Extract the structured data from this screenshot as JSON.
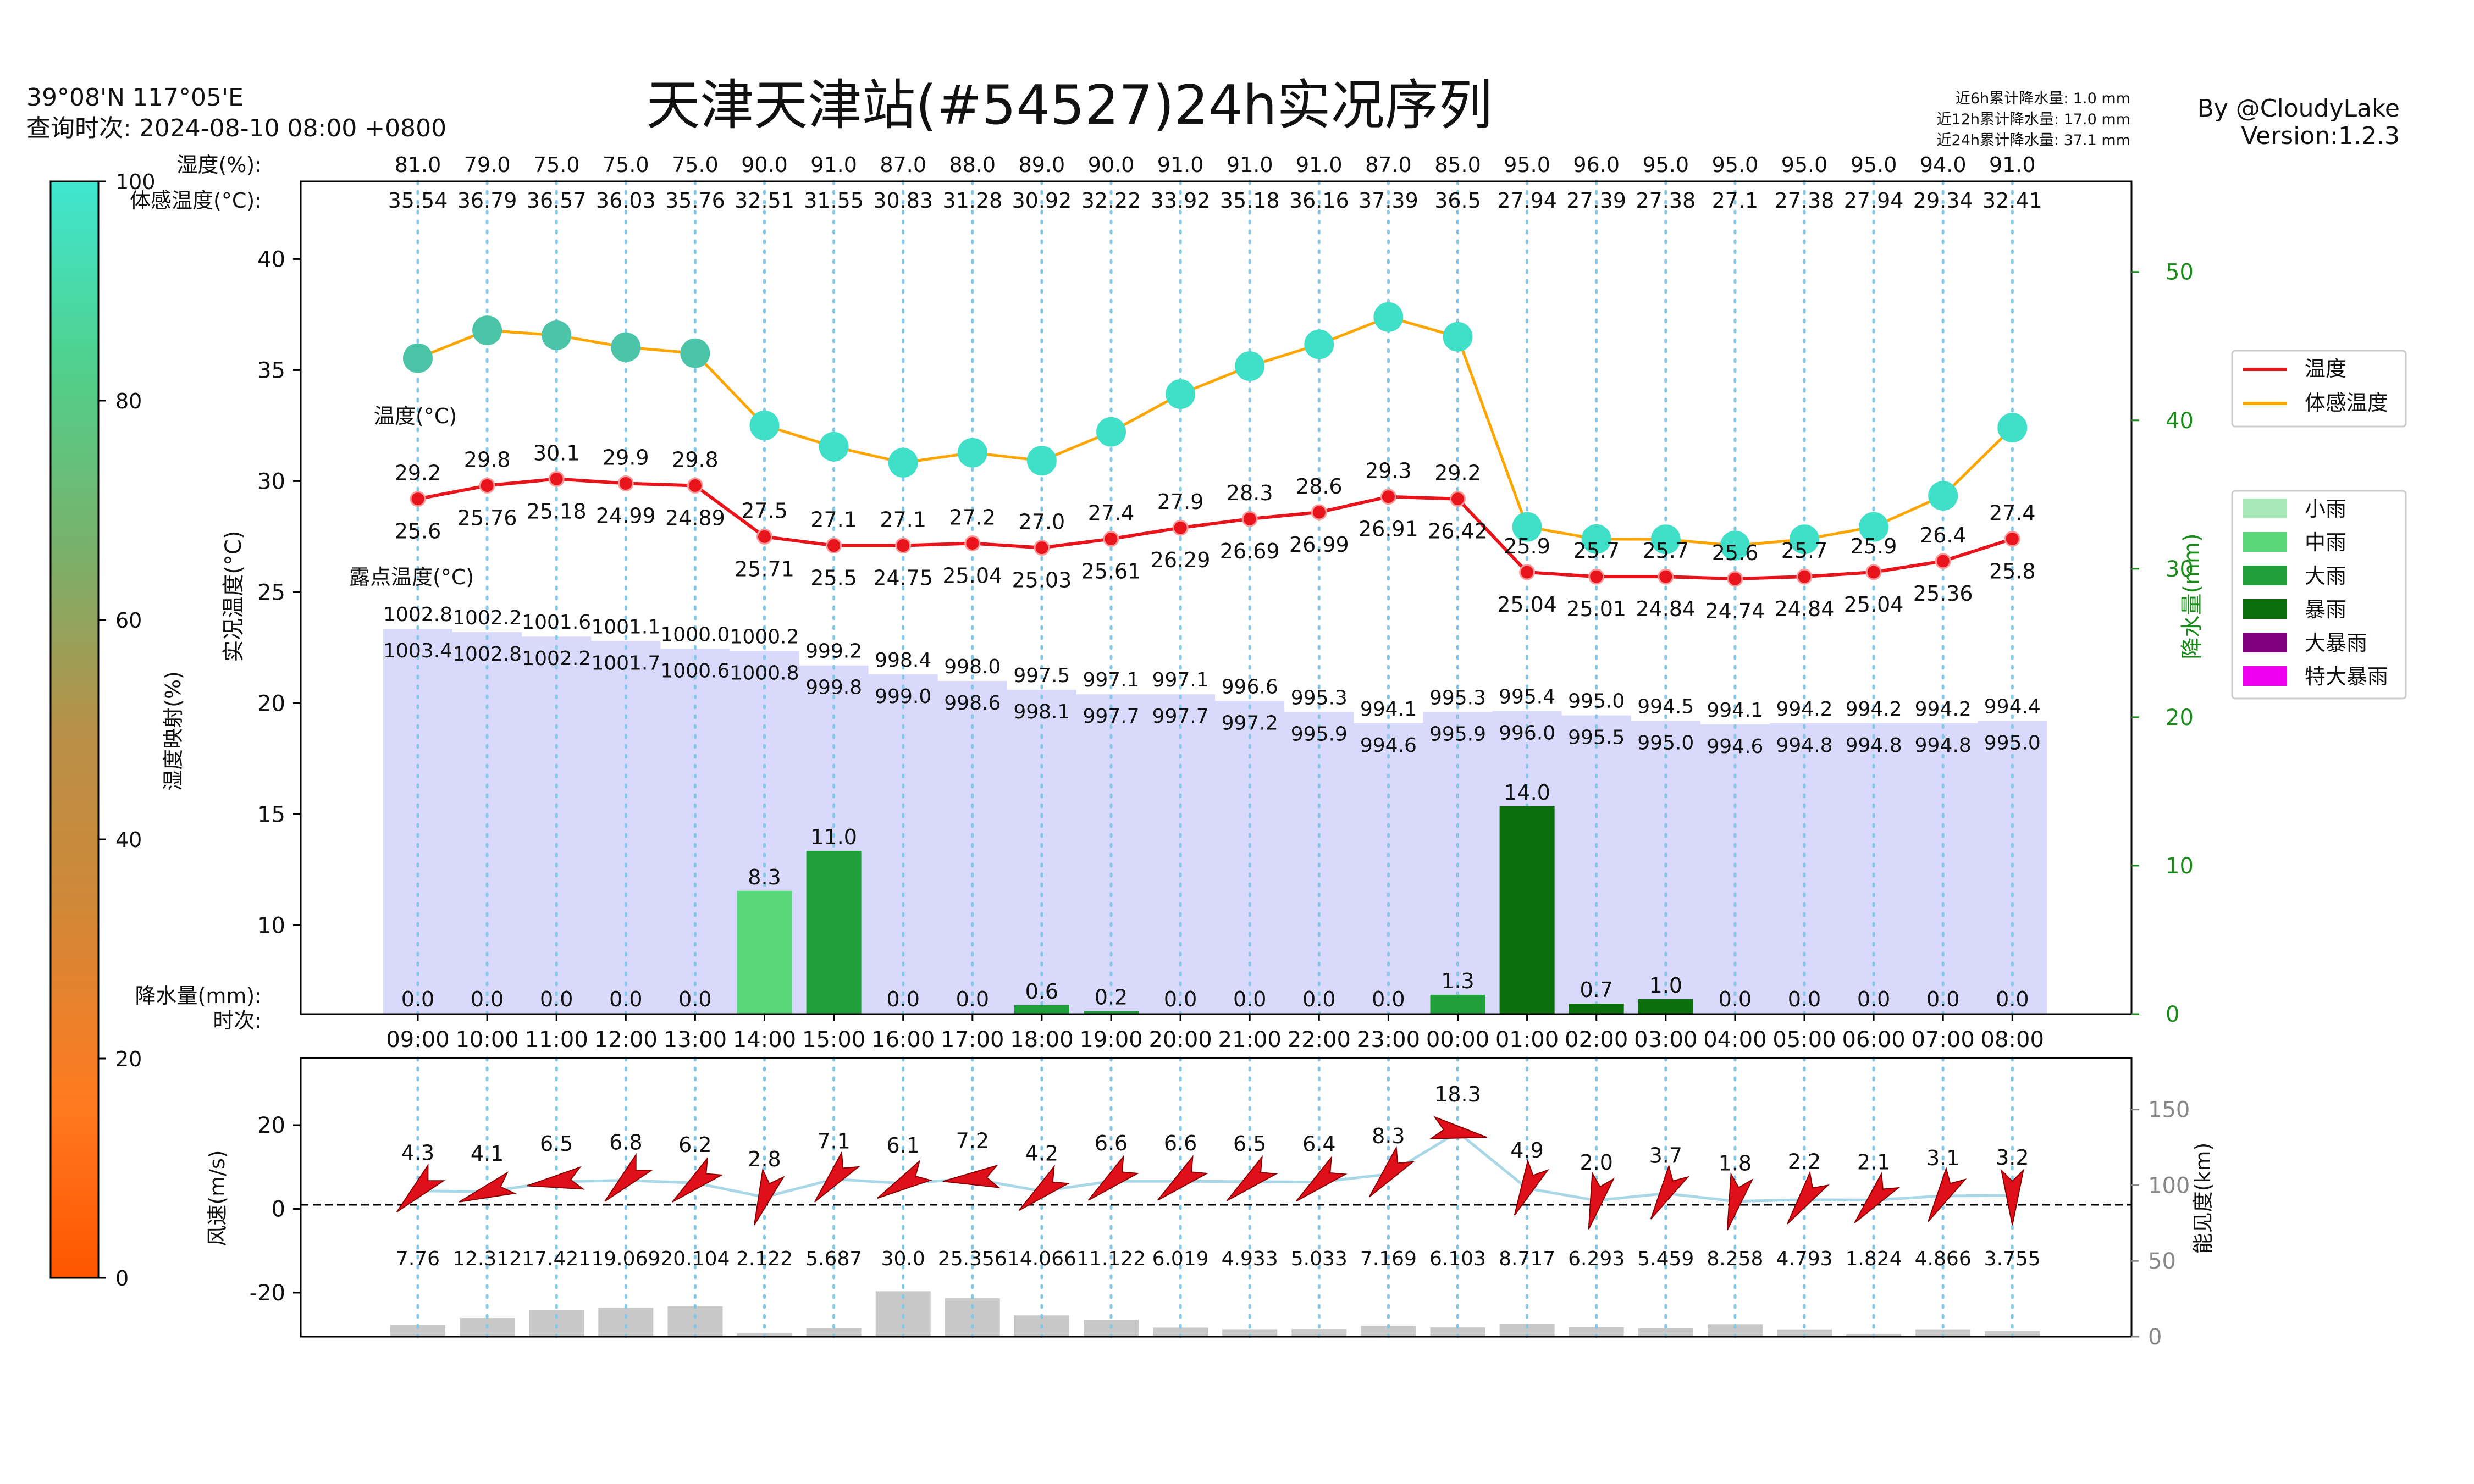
{
  "header": {
    "coords": "39°08'N   117°05'E",
    "query_time": "查询时次: 2024-08-10 08:00 +0800",
    "title": "天津天津站(#54527)24h实况序列",
    "rain_6h": "近6h累计降水量: 1.0 mm",
    "rain_12h": "近12h累计降水量: 17.0 mm",
    "rain_24h": "近24h累计降水量: 37.1 mm",
    "author": "By @CloudyLake",
    "version": "Version:1.2.3"
  },
  "colors": {
    "temp": "#e8141c",
    "feels": "#ffa500",
    "pressure_fill": "#d9d9fc",
    "grid": "#87c7e6",
    "wind_arrow": "#e0101a",
    "wind_line": "#a8d8e8",
    "vis_bar": "#c8c8c8",
    "rain_axis": "#1a8a1a",
    "rain_levels": [
      "#a8e8b8",
      "#58d878",
      "#20a038",
      "#0a6e0a",
      "#800080",
      "#ee00ee"
    ],
    "colorbar": [
      "#ff5500",
      "#ff7a20",
      "#d08838",
      "#b89048",
      "#7ab06a",
      "#50d08c",
      "#40e6d0"
    ]
  },
  "chart_data": [
    {
      "type": "line",
      "title": "天津天津站(#54527)24h实况序列",
      "x": [
        "09:00",
        "10:00",
        "11:00",
        "12:00",
        "13:00",
        "14:00",
        "15:00",
        "16:00",
        "17:00",
        "18:00",
        "19:00",
        "20:00",
        "21:00",
        "22:00",
        "23:00",
        "00:00",
        "01:00",
        "02:00",
        "03:00",
        "04:00",
        "05:00",
        "06:00",
        "07:00",
        "08:00"
      ],
      "xlabel": "时次:",
      "ylabel": "实况温度(°C)",
      "ylim": [
        6.0,
        43.5
      ],
      "yticks": [
        10,
        15,
        20,
        25,
        30,
        35,
        40
      ],
      "y2label": "降水量(mm)",
      "y2lim": [
        0,
        56.1
      ],
      "y2ticks": [
        0,
        10,
        20,
        30,
        40,
        50
      ],
      "row_labels": {
        "humidity": "湿度(%):",
        "feels": "体感温度(°C):",
        "temp": "温度(°C)",
        "dew": "露点温度(°C)",
        "rain": "降水量(mm):"
      },
      "humidity": [
        81.0,
        79.0,
        75.0,
        75.0,
        75.0,
        90.0,
        91.0,
        87.0,
        88.0,
        89.0,
        90.0,
        91.0,
        91.0,
        91.0,
        87.0,
        85.0,
        95.0,
        96.0,
        95.0,
        95.0,
        95.0,
        95.0,
        94.0,
        91.0
      ],
      "humidity_labels": [
        "81.0",
        "79.0",
        "75.0",
        "75.0",
        "75.0",
        "90.0",
        "91.0",
        "87.0",
        "88.0",
        "89.0",
        "90.0",
        "91.0",
        "91.0",
        "91.0",
        "87.0",
        "85.0",
        "95.0",
        "96.0",
        "95.0",
        "95.0",
        "95.0",
        "95.0",
        "94.0",
        "91.0"
      ],
      "feels_like": [
        35.54,
        36.79,
        36.57,
        36.03,
        35.76,
        32.51,
        31.55,
        30.83,
        31.28,
        30.92,
        32.22,
        33.92,
        35.18,
        36.16,
        37.39,
        36.5,
        27.94,
        27.39,
        27.38,
        27.1,
        27.38,
        27.94,
        29.34,
        32.41
      ],
      "feels_labels": [
        "35.54",
        "36.79",
        "36.57",
        "36.03",
        "35.76",
        "32.51",
        "31.55",
        "30.83",
        "31.28",
        "30.92",
        "32.22",
        "33.92",
        "35.18",
        "36.16",
        "37.39",
        "36.5",
        "27.94",
        "27.39",
        "27.38",
        "27.1",
        "27.38",
        "27.94",
        "29.34",
        "32.41"
      ],
      "temperature": [
        29.2,
        29.8,
        30.1,
        29.9,
        29.8,
        27.5,
        27.1,
        27.1,
        27.2,
        27.0,
        27.4,
        27.9,
        28.3,
        28.6,
        29.3,
        29.2,
        25.9,
        25.7,
        25.7,
        25.6,
        25.7,
        25.9,
        26.4,
        27.4
      ],
      "temp_labels": [
        "29.2",
        "29.8",
        "30.1",
        "29.9",
        "29.8",
        "27.5",
        "27.1",
        "27.1",
        "27.2",
        "27.0",
        "27.4",
        "27.9",
        "28.3",
        "28.6",
        "29.3",
        "29.2",
        "25.9",
        "25.7",
        "25.7",
        "25.6",
        "25.7",
        "25.9",
        "26.4",
        "27.4"
      ],
      "dew_point": [
        25.6,
        25.76,
        25.18,
        24.99,
        24.89,
        25.71,
        25.5,
        24.75,
        25.04,
        25.03,
        25.61,
        26.29,
        26.69,
        26.99,
        26.91,
        26.42,
        25.04,
        25.01,
        24.84,
        24.74,
        24.84,
        25.04,
        25.36,
        25.8
      ],
      "dew_labels": [
        "25.6",
        "25.76",
        "25.18",
        "24.99",
        "24.89",
        "25.71",
        "25.5",
        "24.75",
        "25.04",
        "25.03",
        "25.61",
        "26.29",
        "26.69",
        "26.99",
        "26.91",
        "26.42",
        "25.04",
        "25.01",
        "24.84",
        "24.74",
        "24.84",
        "25.04",
        "25.36",
        "25.8"
      ],
      "pressure_upper": [
        1002.8,
        1002.2,
        1001.6,
        1001.1,
        1000.0,
        1000.2,
        999.2,
        998.4,
        998.0,
        997.5,
        997.1,
        997.1,
        996.6,
        995.3,
        994.1,
        995.3,
        995.4,
        995.0,
        994.5,
        994.1,
        994.2,
        994.2,
        994.2,
        994.4
      ],
      "pressure_upper_labels": [
        "1002.8",
        "1002.2",
        "1001.6",
        "1001.1",
        "1000.0",
        "1000.2",
        "999.2",
        "998.4",
        "998.0",
        "997.5",
        "997.1",
        "997.1",
        "996.6",
        "995.3",
        "994.1",
        "995.3",
        "995.4",
        "995.0",
        "994.5",
        "994.1",
        "994.2",
        "994.2",
        "994.2",
        "994.4"
      ],
      "pressure_lower": [
        1003.4,
        1002.8,
        1002.2,
        1001.7,
        1000.6,
        1000.8,
        999.8,
        999.0,
        998.6,
        998.1,
        997.7,
        997.7,
        997.2,
        995.9,
        994.6,
        995.9,
        996.0,
        995.5,
        995.0,
        994.6,
        994.8,
        994.8,
        994.8,
        995.0
      ],
      "pressure_lower_labels": [
        "1003.4",
        "1002.8",
        "1002.2",
        "1001.7",
        "1000.6",
        "1000.8",
        "999.8",
        "999.0",
        "998.6",
        "998.1",
        "997.7",
        "997.7",
        "997.2",
        "995.9",
        "994.6",
        "995.9",
        "996.0",
        "995.5",
        "995.0",
        "994.6",
        "994.8",
        "994.8",
        "994.8",
        "995.0"
      ],
      "pressure_fill_top": [
        23.35,
        23.2,
        23.0,
        22.8,
        22.45,
        22.35,
        21.7,
        21.3,
        21.0,
        20.6,
        20.4,
        20.4,
        20.1,
        19.6,
        19.1,
        19.6,
        19.65,
        19.45,
        19.2,
        19.05,
        19.1,
        19.1,
        19.1,
        19.2
      ],
      "rain": [
        0.0,
        0.0,
        0.0,
        0.0,
        0.0,
        8.3,
        11.0,
        0.0,
        0.0,
        0.6,
        0.2,
        0.0,
        0.0,
        0.0,
        0.0,
        1.3,
        14.0,
        0.7,
        1.0,
        0.0,
        0.0,
        0.0,
        0.0,
        0.0
      ],
      "rain_labels": [
        "0.0",
        "0.0",
        "0.0",
        "0.0",
        "0.0",
        "8.3",
        "11.0",
        "0.0",
        "0.0",
        "0.6",
        "0.2",
        "0.0",
        "0.0",
        "0.0",
        "0.0",
        "1.3",
        "14.0",
        "0.7",
        "1.0",
        "0.0",
        "0.0",
        "0.0",
        "0.0",
        "0.0"
      ],
      "rain_level": [
        0,
        0,
        0,
        0,
        0,
        1,
        2,
        0,
        0,
        2,
        2,
        0,
        0,
        0,
        0,
        2,
        3,
        3,
        3,
        0,
        0,
        0,
        0,
        0
      ],
      "legend_lines": [
        "温度",
        "体感温度"
      ],
      "legend_rain": [
        "小雨",
        "中雨",
        "大雨",
        "暴雨",
        "大暴雨",
        "特大暴雨"
      ],
      "legend_placement": "right"
    },
    {
      "type": "line",
      "ylabel": "风速(m/s)",
      "ylim": [
        -30.5,
        36
      ],
      "yticks": [
        -20,
        0,
        20
      ],
      "y2label": "能见度(km)",
      "y2lim": [
        0,
        184
      ],
      "y2ticks": [
        0,
        50,
        100,
        150
      ],
      "wind_speed": [
        4.3,
        4.1,
        6.5,
        6.8,
        6.2,
        2.8,
        7.1,
        6.1,
        7.2,
        4.2,
        6.6,
        6.6,
        6.5,
        6.4,
        8.3,
        18.3,
        4.9,
        2.0,
        3.7,
        1.8,
        2.2,
        2.1,
        3.1,
        3.2
      ],
      "wind_labels": [
        "4.3",
        "4.1",
        "6.5",
        "6.8",
        "6.2",
        "2.8",
        "7.1",
        "6.1",
        "7.2",
        "4.2",
        "6.6",
        "6.6",
        "6.5",
        "6.4",
        "8.3",
        "18.3",
        "4.9",
        "2.0",
        "3.7",
        "1.8",
        "2.2",
        "2.1",
        "3.1",
        "3.2"
      ],
      "wind_to_dir_deg": [
        135,
        160,
        172,
        135,
        140,
        110,
        130,
        150,
        175,
        140,
        140,
        140,
        140,
        140,
        130,
        10,
        115,
        105,
        120,
        105,
        125,
        130,
        120,
        90
      ],
      "visibility": [
        7.76,
        12.312,
        17.421,
        19.069,
        20.104,
        2.122,
        5.687,
        30.0,
        25.356,
        14.066,
        11.122,
        6.019,
        4.933,
        5.033,
        7.169,
        6.103,
        8.717,
        6.293,
        5.459,
        8.258,
        4.793,
        1.824,
        4.866,
        3.755
      ],
      "visibility_labels": [
        "7.76",
        "12.312",
        "17.421",
        "19.069",
        "20.104",
        "2.122",
        "5.687",
        "30.0",
        "25.356",
        "14.066",
        "11.122",
        "6.019",
        "4.933",
        "5.033",
        "7.169",
        "6.103",
        "8.717",
        "6.293",
        "5.459",
        "8.258",
        "4.793",
        "1.824",
        "4.866",
        "3.755"
      ],
      "grid": true
    },
    {
      "type": "heatmap",
      "ylabel": "湿度映射(%)",
      "range": [
        0,
        100
      ],
      "ticks": [
        0,
        20,
        40,
        60,
        80,
        100
      ]
    }
  ]
}
